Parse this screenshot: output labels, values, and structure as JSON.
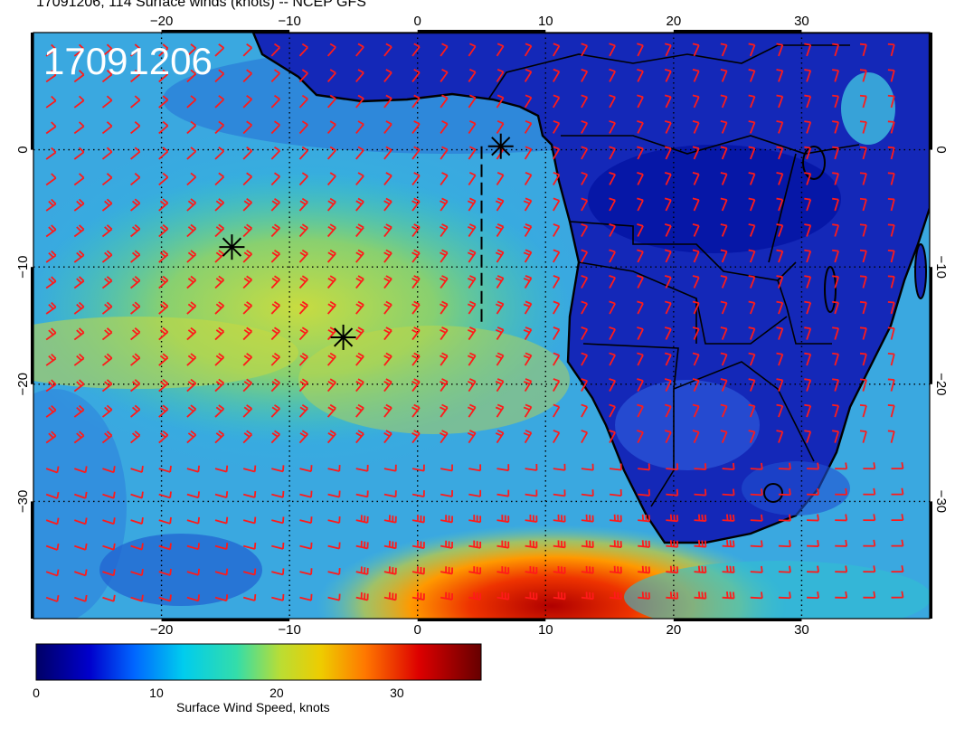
{
  "title": "17091206, 114 Surface winds (knots) -- NCEP GFS",
  "stamp": "17091206",
  "map": {
    "lon_range": [
      -30,
      40
    ],
    "lat_range": [
      -40,
      10
    ],
    "lon_ticks": [
      -20,
      -10,
      0,
      10,
      20,
      30
    ],
    "lat_ticks": [
      0,
      -10,
      -20,
      -30
    ],
    "lon_tick_labels": [
      "−20",
      "−10",
      "0",
      "10",
      "20",
      "30"
    ],
    "lat_tick_labels": [
      "0",
      "−10",
      "−20",
      "−30"
    ],
    "barb_color": "#ff1a1a",
    "coast_color": "#000000",
    "markers": [
      {
        "lon": 6.5,
        "lat": 0.3,
        "name": "marker-1"
      },
      {
        "lon": -14.5,
        "lat": -8.3,
        "name": "marker-2"
      },
      {
        "lon": -5.8,
        "lat": -16.0,
        "name": "marker-3"
      }
    ],
    "track": [
      [
        5,
        0.3
      ],
      [
        5,
        -15
      ]
    ]
  },
  "colorbar": {
    "label": "Surface Wind Speed, knots",
    "range": [
      0,
      37
    ],
    "ticks": [
      0,
      10,
      20,
      30
    ],
    "tick_labels": [
      "0",
      "10",
      "20",
      "30"
    ],
    "colors": [
      "#000066",
      "#0000cc",
      "#0066ff",
      "#00ccee",
      "#33ddaa",
      "#bbdd33",
      "#eecc00",
      "#ff7700",
      "#dd0000",
      "#660000"
    ]
  }
}
